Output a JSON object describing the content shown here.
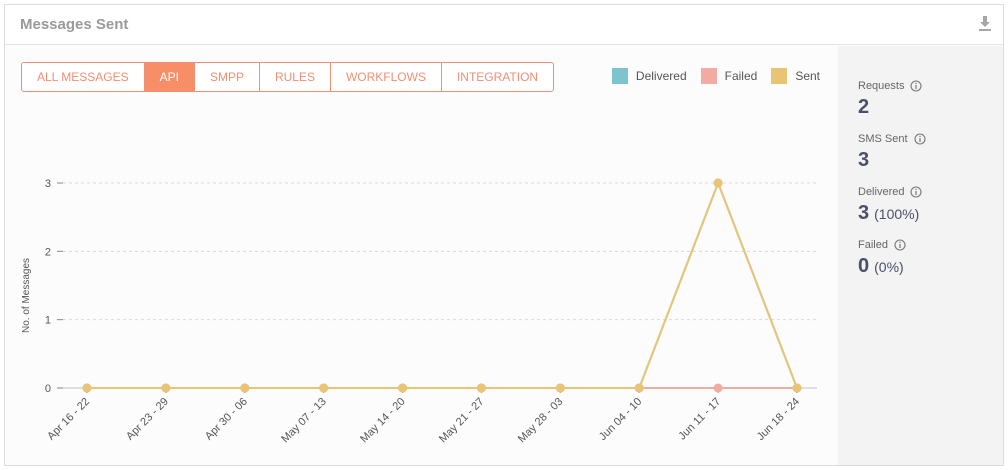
{
  "card": {
    "title": "Messages Sent",
    "download_icon": "download-icon"
  },
  "tabs": [
    {
      "label": "ALL MESSAGES",
      "active": false
    },
    {
      "label": "API",
      "active": true
    },
    {
      "label": "SMPP",
      "active": false
    },
    {
      "label": "RULES",
      "active": false
    },
    {
      "label": "WORKFLOWS",
      "active": false
    },
    {
      "label": "INTEGRATION",
      "active": false
    }
  ],
  "colors": {
    "delivered": "#7ec4cf",
    "failed": "#f2aba0",
    "sent": "#eac475",
    "accent": "#f88e68"
  },
  "stats": [
    {
      "label": "Requests",
      "value": "2",
      "extra": ""
    },
    {
      "label": "SMS Sent",
      "value": "3",
      "extra": ""
    },
    {
      "label": "Delivered",
      "value": "3",
      "extra": "(100%)"
    },
    {
      "label": "Failed",
      "value": "0",
      "extra": "(0%)"
    }
  ],
  "chart_data": {
    "type": "line",
    "categories": [
      "Apr 16 - 22",
      "Apr 23 - 29",
      "Apr 30 - 06",
      "May 07 - 13",
      "May 14 - 20",
      "May 21 - 27",
      "May 28 - 03",
      "Jun 04 - 10",
      "Jun 11 - 17",
      "Jun 18 - 24"
    ],
    "series": [
      {
        "name": "Delivered",
        "values": [
          0,
          0,
          0,
          0,
          0,
          0,
          0,
          0,
          3,
          0
        ]
      },
      {
        "name": "Failed",
        "values": [
          0,
          0,
          0,
          0,
          0,
          0,
          0,
          0,
          0,
          0
        ]
      },
      {
        "name": "Sent",
        "values": [
          0,
          0,
          0,
          0,
          0,
          0,
          0,
          0,
          3,
          0
        ]
      }
    ],
    "ylabel": "No. of Messages",
    "xlabel": "",
    "ylim": [
      0,
      3
    ],
    "yticks": [
      0,
      1,
      2,
      3
    ],
    "grid": true,
    "legend_position": "top-right"
  }
}
